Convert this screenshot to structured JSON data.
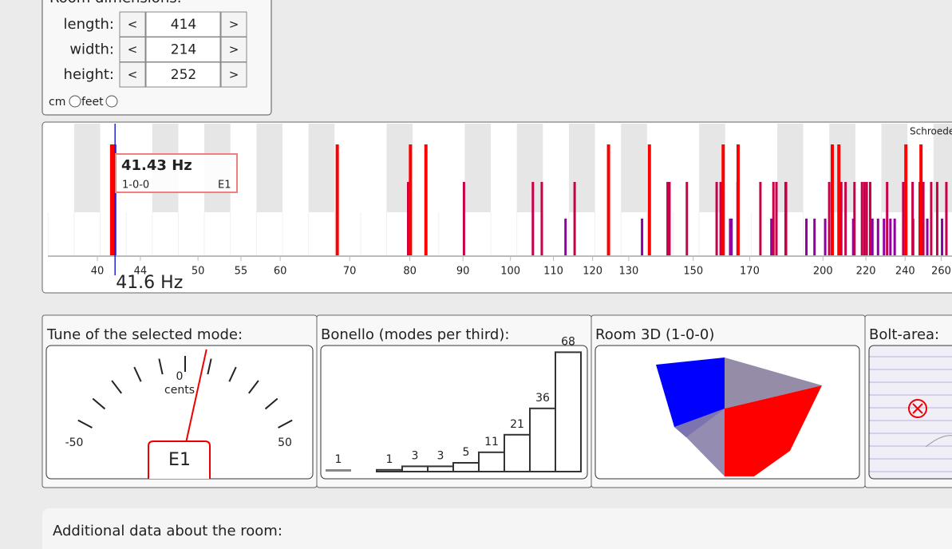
{
  "room": {
    "title": "Room dimensions:",
    "fields": [
      {
        "label": "length:",
        "value": 414
      },
      {
        "label": "width:",
        "value": 214
      },
      {
        "label": "height:",
        "value": 252
      }
    ],
    "decrease": "<",
    "increase": ">",
    "units": [
      "cm",
      "feet"
    ]
  },
  "spectrum": {
    "type": "modes",
    "log": true,
    "xlim": [
      35.84,
      266.3
    ],
    "xticks": [
      40,
      44,
      50,
      55,
      60,
      70,
      80,
      90,
      100,
      110,
      120,
      130,
      150,
      170,
      200,
      220,
      240,
      260
    ],
    "axial": [
      41.43,
      68.1,
      80.1,
      82.9,
      124.3,
      136.1,
      160.3,
      165.7,
      204.2,
      207.2,
      240.4,
      248.6
    ],
    "tangential": [
      79.7,
      90.2,
      105.1,
      107.2,
      115.3,
      141.7,
      142.3,
      147.9,
      158.0,
      159.4,
      165.5,
      174.1,
      179.2,
      180.4,
      184.1,
      184.3,
      202.8,
      208.3,
      210.3,
      214.5,
      218.1,
      219.3,
      220.4,
      222.1,
      230.6,
      239.0,
      244.0,
      247.9,
      249.9,
      254.3,
      257.7,
      263.0
    ],
    "oblique": [
      113.0,
      133.9,
      162.8,
      163.3,
      178.4,
      179.0,
      192.8,
      196.3,
      201.0,
      213.9,
      214.3,
      223.2,
      226.0,
      229.0,
      232.3,
      234.5,
      240.4,
      244.3,
      252.1,
      260.5
    ],
    "colors": {
      "axial": "#ff0000",
      "tangential": "#c8004a",
      "oblique": "#9000a0",
      "cursor": "#2222dd"
    },
    "selected": {
      "frequency": 41.43,
      "label": "41.43 Hz",
      "mode": "1-0-0",
      "note": "E1"
    },
    "cursor": {
      "value": 41.6,
      "label": "41.6 Hz"
    },
    "schroeder_label": "Schroeder"
  },
  "tune": {
    "title": "Tune of the selected mode:",
    "ticks": [
      -50,
      -40,
      -30,
      -20,
      -10,
      0,
      10,
      20,
      30,
      40,
      50
    ],
    "unit": "cents",
    "cents": 10,
    "note": "E1"
  },
  "bonello": {
    "title": "Bonello (modes per third):",
    "values": [
      1,
      0,
      1,
      3,
      3,
      5,
      11,
      21,
      36,
      68
    ]
  },
  "room3d": {
    "title": "Room 3D (1-0-0)"
  },
  "bolt": {
    "title": "Bolt-area:"
  },
  "additional": {
    "title": "Additional data about the room:"
  }
}
